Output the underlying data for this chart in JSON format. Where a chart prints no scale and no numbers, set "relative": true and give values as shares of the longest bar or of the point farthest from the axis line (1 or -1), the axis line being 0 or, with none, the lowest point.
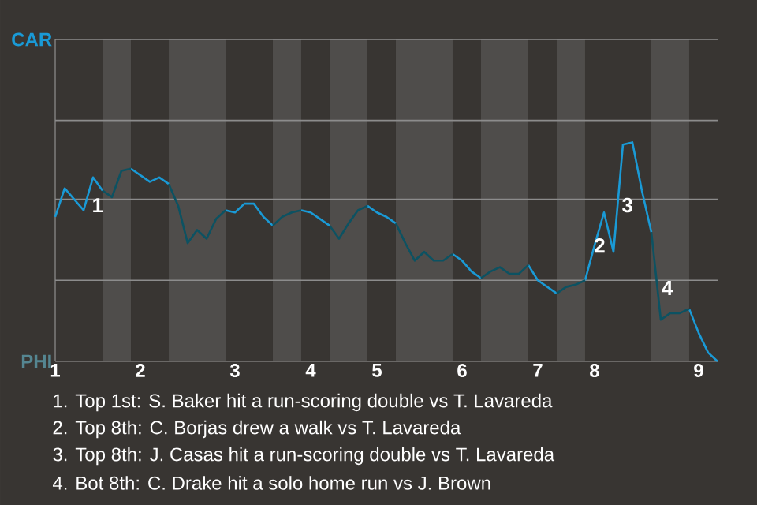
{
  "chart_data": {
    "type": "line",
    "relative": true,
    "categories": [
      "1",
      null,
      null,
      null,
      null,
      null,
      null,
      null,
      null,
      "2",
      null,
      null,
      null,
      null,
      null,
      null,
      null,
      null,
      null,
      "3",
      null,
      null,
      null,
      null,
      null,
      null,
      null,
      "4",
      null,
      null,
      null,
      null,
      null,
      null,
      "5",
      null,
      null,
      null,
      null,
      null,
      null,
      null,
      null,
      "6",
      null,
      null,
      null,
      null,
      null,
      null,
      null,
      "7",
      null,
      null,
      null,
      null,
      null,
      "8",
      null,
      null,
      null,
      null,
      null,
      null,
      null,
      null,
      null,
      null,
      "9",
      null,
      null
    ],
    "series": [
      {
        "color": "#1a9ad6",
        "values": [
          0.66,
          0.79,
          0.74,
          0.69,
          0.84,
          0.78,
          null,
          null,
          0.88,
          0.85,
          0.82,
          0.84,
          0.81,
          null,
          null,
          null,
          null,
          null,
          0.69,
          0.68,
          0.72,
          0.72,
          0.66,
          0.62,
          null,
          null,
          0.69,
          0.68,
          0.65,
          0.62,
          null,
          null,
          null,
          0.71,
          0.68,
          0.66,
          0.63,
          null,
          null,
          null,
          null,
          null,
          0.49,
          0.46,
          0.41,
          0.38,
          null,
          null,
          null,
          null,
          0.44,
          0.37,
          0.34,
          0.31,
          null,
          null,
          0.37,
          0.53,
          0.68,
          0.5,
          0.99,
          1,
          0.78,
          0.59,
          null,
          null,
          null,
          0.24,
          0.13,
          0.04,
          0
        ]
      },
      {
        "color": "#0c5262",
        "values": [
          null,
          null,
          null,
          null,
          null,
          0.78,
          0.75,
          0.87,
          0.88,
          null,
          null,
          null,
          0.81,
          0.71,
          0.54,
          0.6,
          0.56,
          0.65,
          0.69,
          null,
          null,
          null,
          null,
          0.62,
          0.66,
          0.68,
          0.69,
          null,
          null,
          0.62,
          0.56,
          0.63,
          0.69,
          0.71,
          null,
          null,
          0.63,
          0.54,
          0.46,
          0.5,
          0.46,
          0.46,
          0.49,
          null,
          null,
          0.38,
          0.41,
          0.43,
          0.4,
          0.4,
          0.44,
          null,
          null,
          0.31,
          0.34,
          0.35,
          0.37,
          null,
          null,
          null,
          null,
          null,
          null,
          0.59,
          0.19,
          0.22,
          0.22,
          0.24,
          null,
          null,
          null
        ]
      }
    ],
    "ref_lines": [
      {
        "axis": "y",
        "value": 0.37,
        "color": "#8c8c8c"
      },
      {
        "axis": "y",
        "value": 0.74,
        "color": "#8c8c8c"
      },
      {
        "axis": "y",
        "value": 1.1,
        "color": "#8c8c8c"
      },
      {
        "axis": "y",
        "value": 1.47,
        "color": "#8c8c8c"
      }
    ],
    "annotations": [
      "CAR",
      "PHI",
      "1",
      "2",
      "3",
      "4",
      "1. Top 1st: S. Baker hit a run-scoring double vs T. Lavareda",
      "2. Top 8th: C. Borjas drew a walk vs T. Lavareda",
      "3. Top 8th: J. Casas hit a run-scoring double vs T. Lavareda",
      "4. Bot 8th: C. Drake hit a solo home run vs J. Brown"
    ]
  }
}
